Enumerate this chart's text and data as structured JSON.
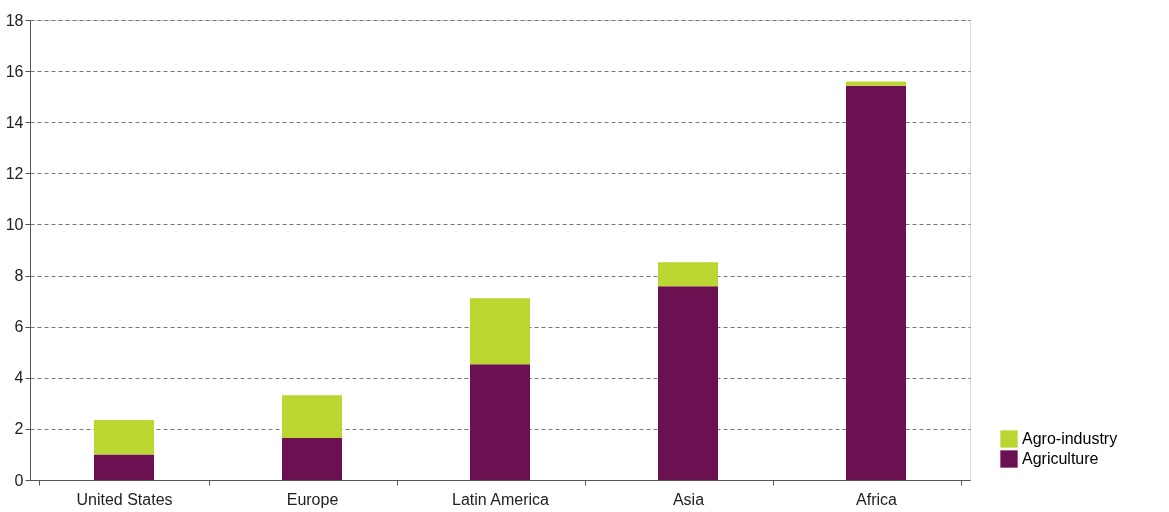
{
  "chart_data": {
    "type": "bar",
    "stacked": true,
    "categories": [
      "United States",
      "Europe",
      "Latin America",
      "Asia",
      "Africa"
    ],
    "series": [
      {
        "name": "Agriculture",
        "color": "#6b1050",
        "values": [
          1.0,
          1.64,
          4.53,
          7.58,
          15.43
        ]
      },
      {
        "name": "Agro-industry",
        "color": "#bcd631",
        "values": [
          1.35,
          1.68,
          2.58,
          0.94,
          0.16
        ]
      }
    ],
    "ylim": [
      0,
      18
    ],
    "yticks": [
      0,
      2,
      4,
      6,
      8,
      10,
      12,
      14,
      16,
      18
    ],
    "grid": "y",
    "legend": "bottom right"
  }
}
